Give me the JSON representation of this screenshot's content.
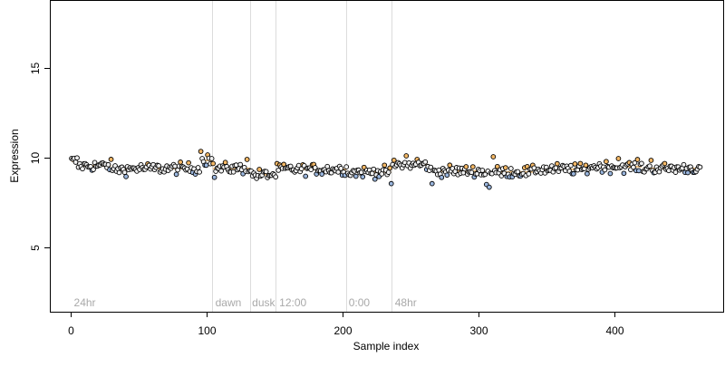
{
  "chart_data": {
    "type": "scatter",
    "title": "",
    "xlabel": "Sample index",
    "ylabel": "Expression",
    "xlim": [
      -15,
      480
    ],
    "ylim": [
      1.4,
      18.8
    ],
    "x_ticks": [
      0,
      100,
      200,
      300,
      400
    ],
    "y_ticks": [
      5,
      10,
      15
    ],
    "grid": false,
    "vertical_markers": [
      {
        "x": 104,
        "label": ""
      },
      {
        "x": 132,
        "label": ""
      },
      {
        "x": 151,
        "label": ""
      },
      {
        "x": 203,
        "label": ""
      },
      {
        "x": 236,
        "label": ""
      }
    ],
    "region_labels": [
      {
        "x": 2,
        "label": "24hr"
      },
      {
        "x": 106,
        "label": "dawn"
      },
      {
        "x": 133,
        "label": "dusk"
      },
      {
        "x": 153,
        "label": "12:00"
      },
      {
        "x": 204,
        "label": "0:00"
      },
      {
        "x": 238,
        "label": "48hr"
      }
    ],
    "fill_colors": {
      "neutral": "#f0f0f0",
      "up": "#f4b866",
      "down": "#9ab6de"
    },
    "outline_color": "#000000",
    "fit_line_color": "#f0c080",
    "series": [
      {
        "x_start": 1,
        "y_baseline": 9.45,
        "segments": [
          {
            "from": 1,
            "to": 5,
            "level": 9.8
          },
          {
            "from": 6,
            "to": 30,
            "level": 9.55
          },
          {
            "from": 31,
            "to": 45,
            "level": 9.35
          },
          {
            "from": 46,
            "to": 95,
            "level": 9.4
          },
          {
            "from": 96,
            "to": 104,
            "level": 9.85
          },
          {
            "from": 105,
            "to": 132,
            "level": 9.4
          },
          {
            "from": 133,
            "to": 151,
            "level": 9.05
          },
          {
            "from": 152,
            "to": 203,
            "level": 9.35
          },
          {
            "from": 204,
            "to": 236,
            "level": 9.2
          },
          {
            "from": 237,
            "to": 263,
            "level": 9.6
          },
          {
            "from": 264,
            "to": 300,
            "level": 9.25
          },
          {
            "from": 301,
            "to": 340,
            "level": 9.2
          },
          {
            "from": 341,
            "to": 380,
            "level": 9.35
          },
          {
            "from": 381,
            "to": 420,
            "level": 9.5
          },
          {
            "from": 421,
            "to": 463,
            "level": 9.4
          }
        ],
        "n_points": 463,
        "noise": 0.28,
        "notable_points": [
          {
            "x": 96,
            "y": 10.35
          },
          {
            "x": 101,
            "y": 10.15
          },
          {
            "x": 104,
            "y": 9.95
          },
          {
            "x": 106,
            "y": 8.9
          },
          {
            "x": 130,
            "y": 9.9
          },
          {
            "x": 236,
            "y": 8.55
          },
          {
            "x": 247,
            "y": 10.1
          },
          {
            "x": 255,
            "y": 9.9
          },
          {
            "x": 266,
            "y": 8.55
          },
          {
            "x": 306,
            "y": 8.5
          },
          {
            "x": 308,
            "y": 8.35
          },
          {
            "x": 311,
            "y": 10.05
          },
          {
            "x": 403,
            "y": 9.95
          },
          {
            "x": 427,
            "y": 9.85
          }
        ]
      }
    ]
  }
}
